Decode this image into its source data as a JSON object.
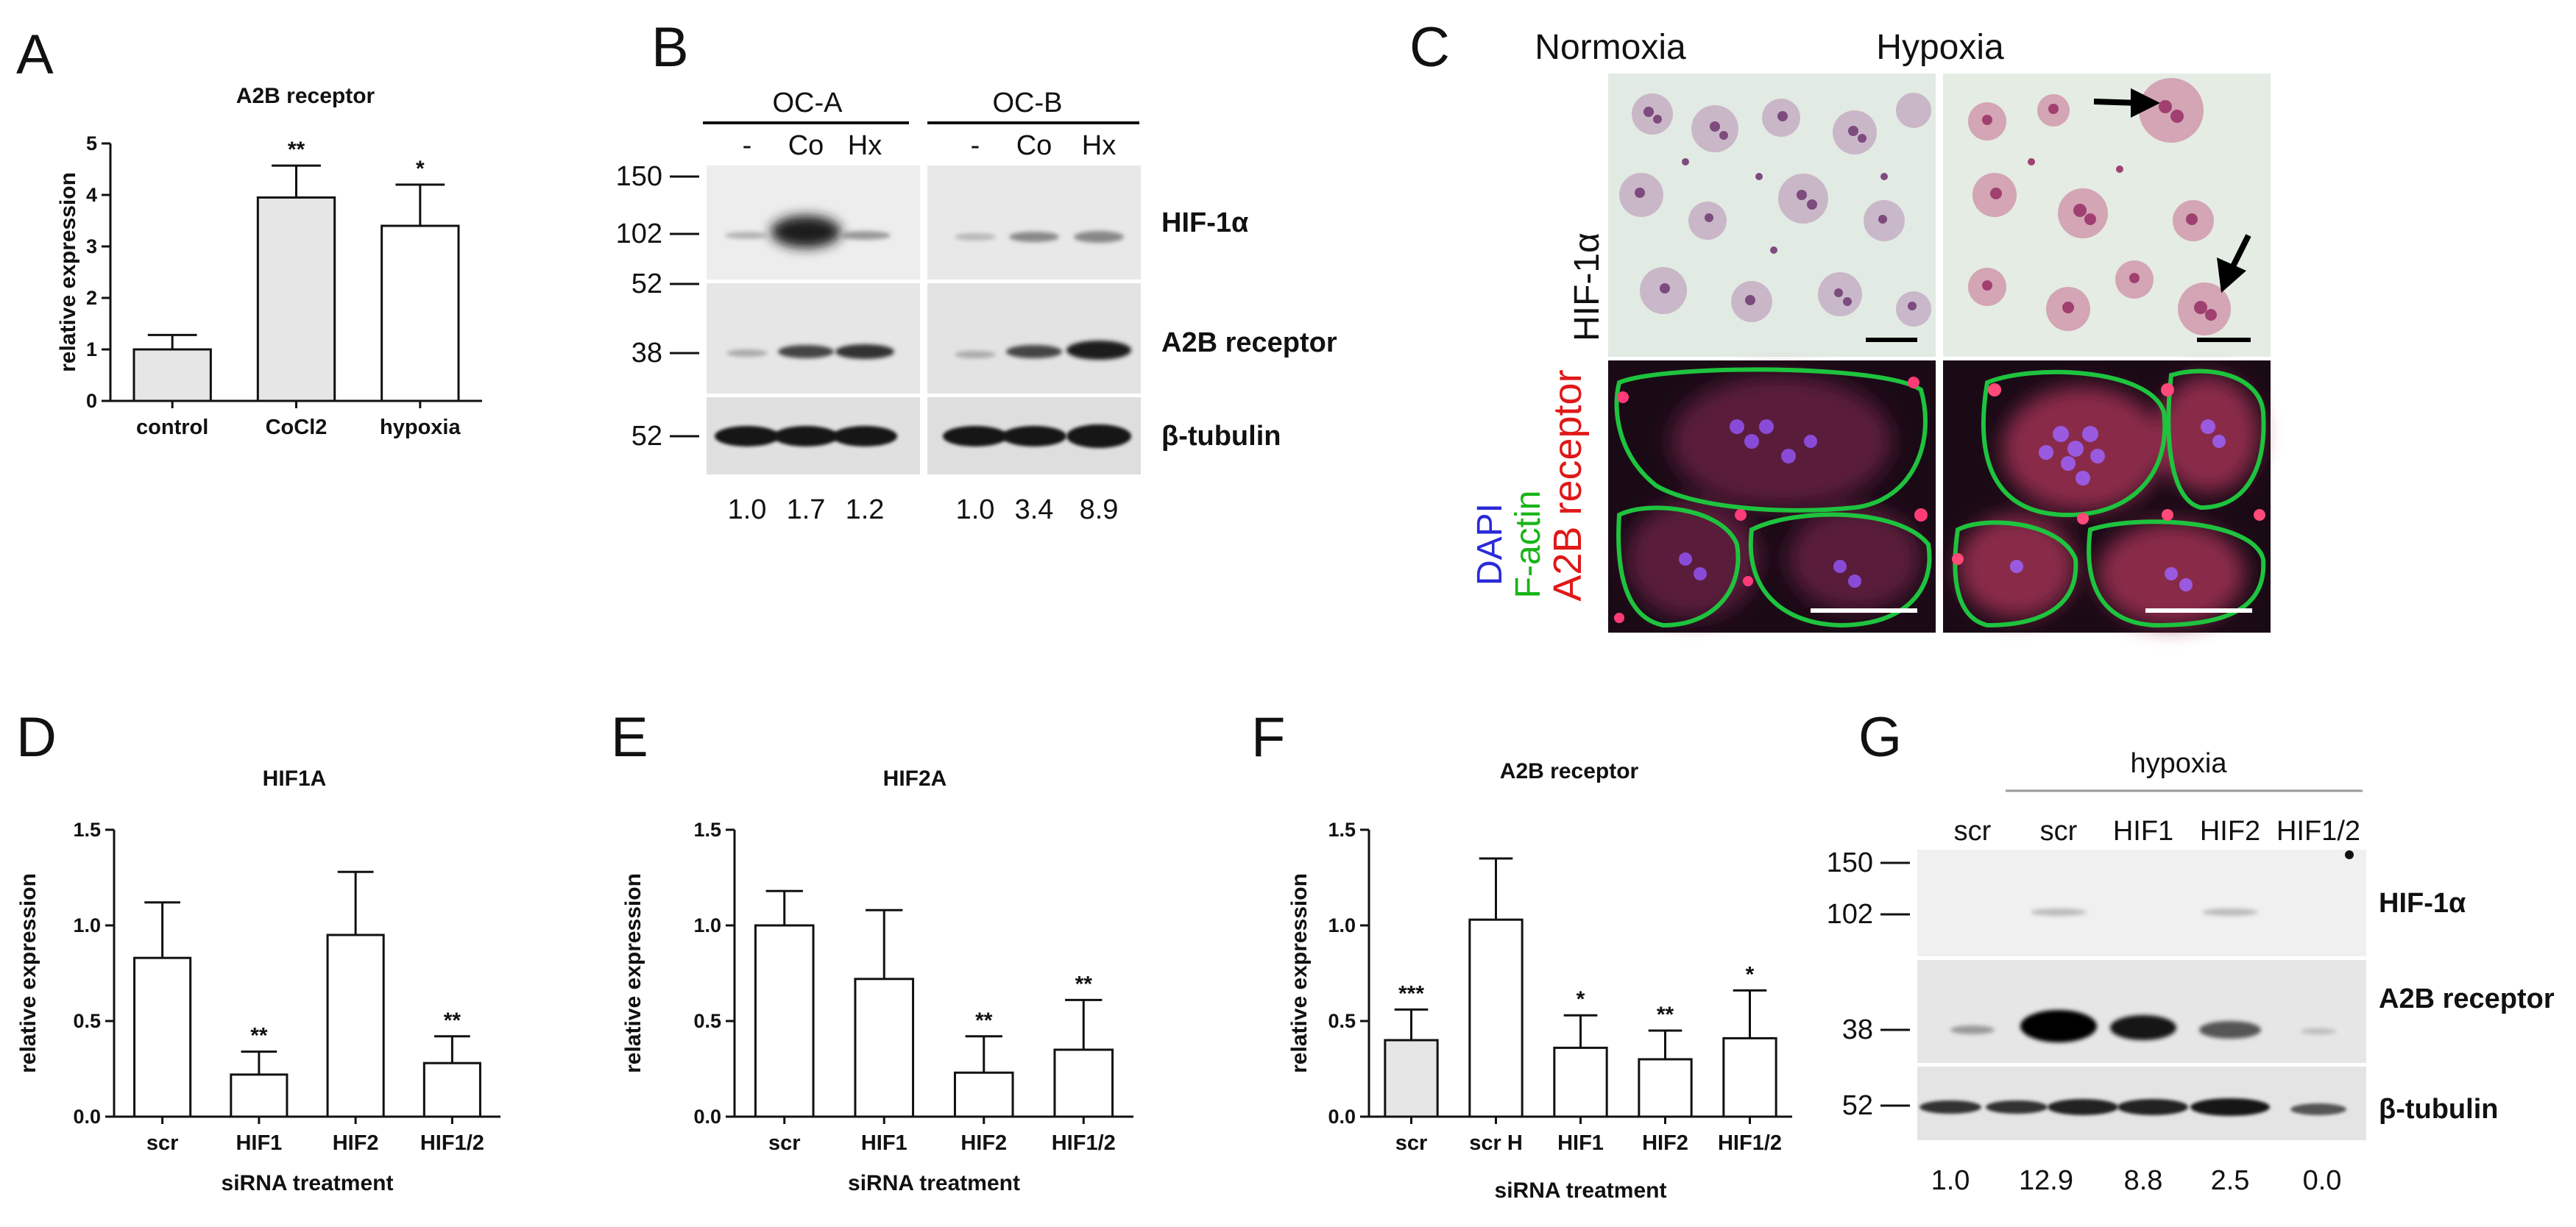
{
  "panels": {
    "A": {
      "label": "A",
      "chart_data": {
        "type": "bar",
        "title": "A2B receptor",
        "ylabel": "relative expression",
        "xlabel": "",
        "ylim": [
          0,
          5
        ],
        "yticks": [
          "0",
          "1",
          "2",
          "3",
          "4",
          "5"
        ],
        "categories": [
          "control",
          "CoCl2",
          "hypoxia"
        ],
        "values": [
          1.0,
          3.95,
          3.4
        ],
        "errors": [
          0.28,
          0.62,
          0.8
        ],
        "significance": [
          "",
          "**",
          "*"
        ],
        "fills": [
          "#e6e6e6",
          "#e6e6e6",
          "#ffffff"
        ]
      }
    },
    "B": {
      "label": "B",
      "groups": [
        "OC-A",
        "OC-B"
      ],
      "lanes": [
        "-",
        "Co",
        "Hx",
        "-",
        "Co",
        "Hx"
      ],
      "mw_markers": [
        "150",
        "102",
        "52",
        "38",
        "52"
      ],
      "proteins": [
        "HIF-1α",
        "A2B receptor",
        "β-tubulin"
      ],
      "quantification": [
        "1.0",
        "1.7",
        "1.2",
        "1.0",
        "3.4",
        "8.9"
      ]
    },
    "C": {
      "label": "C",
      "columns": [
        "Normoxia",
        "Hypoxia"
      ],
      "row1_label": "HIF-1α",
      "row2_labels": {
        "dapi": "DAPI",
        "factin": "F-actin",
        "a2b": "A2B receptor"
      },
      "colors": {
        "dapi": "#2a2ad8",
        "factin": "#18b418",
        "a2b": "#e01818"
      }
    },
    "D": {
      "label": "D",
      "chart_data": {
        "type": "bar",
        "title": "HIF1A",
        "ylabel": "relative expression",
        "xlabel": "siRNA treatment",
        "ylim": [
          0,
          1.5
        ],
        "yticks": [
          "0.0",
          "0.5",
          "1.0",
          "1.5"
        ],
        "categories": [
          "scr",
          "HIF1",
          "HIF2",
          "HIF1/2"
        ],
        "values": [
          0.83,
          0.22,
          0.95,
          0.28
        ],
        "errors": [
          0.29,
          0.12,
          0.33,
          0.14
        ],
        "significance": [
          "",
          "**",
          "",
          "**"
        ],
        "fills": [
          "#ffffff",
          "#ffffff",
          "#ffffff",
          "#ffffff"
        ]
      }
    },
    "E": {
      "label": "E",
      "chart_data": {
        "type": "bar",
        "title": "HIF2A",
        "ylabel": "relative expression",
        "xlabel": "siRNA treatment",
        "ylim": [
          0,
          1.5
        ],
        "yticks": [
          "0.0",
          "0.5",
          "1.0",
          "1.5"
        ],
        "categories": [
          "scr",
          "HIF1",
          "HIF2",
          "HIF1/2"
        ],
        "values": [
          1.0,
          0.72,
          0.23,
          0.35
        ],
        "errors": [
          0.18,
          0.36,
          0.19,
          0.26
        ],
        "significance": [
          "",
          "",
          "**",
          "**"
        ],
        "fills": [
          "#ffffff",
          "#ffffff",
          "#ffffff",
          "#ffffff"
        ]
      }
    },
    "F": {
      "label": "F",
      "chart_data": {
        "type": "bar",
        "title": "A2B receptor",
        "ylabel": "relative expression",
        "xlabel": "siRNA treatment",
        "ylim": [
          0,
          1.5
        ],
        "yticks": [
          "0.0",
          "0.5",
          "1.0",
          "1.5"
        ],
        "categories": [
          "scr",
          "scr H",
          "HIF1",
          "HIF2",
          "HIF1/2"
        ],
        "values": [
          0.4,
          1.03,
          0.36,
          0.3,
          0.41
        ],
        "errors": [
          0.16,
          0.32,
          0.17,
          0.15,
          0.25
        ],
        "significance": [
          "***",
          "",
          "*",
          "**",
          "*"
        ],
        "fills": [
          "#e6e6e6",
          "#ffffff",
          "#ffffff",
          "#ffffff",
          "#ffffff"
        ]
      }
    },
    "G": {
      "label": "G",
      "condition": "hypoxia",
      "lanes": [
        "scr",
        "scr",
        "HIF1",
        "HIF2",
        "HIF1/2"
      ],
      "mw_markers": [
        "150",
        "102",
        "38",
        "52"
      ],
      "proteins": [
        "HIF-1α",
        "A2B receptor",
        "β-tubulin"
      ],
      "quantification": [
        "1.0",
        "12.9",
        "8.8",
        "2.5",
        "0.0"
      ]
    }
  }
}
